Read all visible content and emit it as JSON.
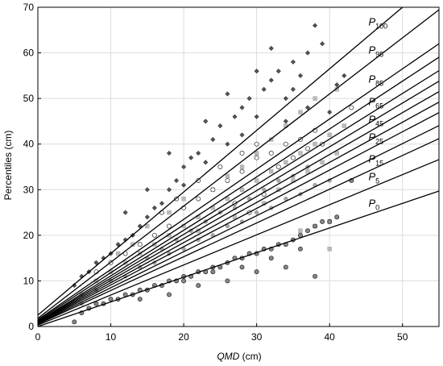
{
  "chart_data": {
    "type": "scatter",
    "title": "",
    "xlabel": "QMD",
    "xlabel_unit": " (cm)",
    "ylabel": "Percentiles (cm)",
    "xlim": [
      0,
      55
    ],
    "ylim": [
      0,
      70
    ],
    "xticks": [
      0,
      10,
      20,
      30,
      40,
      50
    ],
    "yticks": [
      0,
      10,
      20,
      30,
      40,
      50,
      60,
      70
    ],
    "grid": true,
    "legend": "none",
    "colors": {
      "line": "#000000",
      "grid": "#dcdcdc",
      "marker_dark": "#555555",
      "marker_light": "#bbbbbb"
    },
    "lines": [
      {
        "name": "P",
        "sub": "100",
        "intercept": 2.5,
        "slope": 1.35
      },
      {
        "name": "P",
        "sub": "95",
        "intercept": 1.8,
        "slope": 1.23
      },
      {
        "name": "P",
        "sub": "85",
        "intercept": 1.5,
        "slope": 1.1
      },
      {
        "name": "",
        "sub": "",
        "intercept": 1.3,
        "slope": 1.05
      },
      {
        "name": "P",
        "sub": "65",
        "intercept": 1.1,
        "slope": 1.0
      },
      {
        "name": "",
        "sub": "",
        "intercept": 1.0,
        "slope": 0.96
      },
      {
        "name": "P",
        "sub": "45",
        "intercept": 0.9,
        "slope": 0.92
      },
      {
        "name": "",
        "sub": "",
        "intercept": 0.8,
        "slope": 0.88
      },
      {
        "name": "P",
        "sub": "25",
        "intercept": 0.7,
        "slope": 0.84
      },
      {
        "name": "",
        "sub": "",
        "intercept": 0.6,
        "slope": 0.79
      },
      {
        "name": "P",
        "sub": "15",
        "intercept": 0.5,
        "slope": 0.74
      },
      {
        "name": "P",
        "sub": "5",
        "intercept": 0.3,
        "slope": 0.66
      },
      {
        "name": "P",
        "sub": "0",
        "intercept": 0.0,
        "slope": 0.54
      }
    ],
    "series": [
      {
        "marker": "diamond",
        "points": [
          [
            5,
            9
          ],
          [
            6,
            11
          ],
          [
            7,
            12
          ],
          [
            8,
            14
          ],
          [
            9,
            15
          ],
          [
            10,
            16
          ],
          [
            11,
            18
          ],
          [
            12,
            19
          ],
          [
            13,
            20
          ],
          [
            14,
            22
          ],
          [
            15,
            24
          ],
          [
            16,
            26
          ],
          [
            17,
            27
          ],
          [
            18,
            30
          ],
          [
            19,
            32
          ],
          [
            20,
            35
          ],
          [
            21,
            37
          ],
          [
            22,
            38
          ],
          [
            23,
            36
          ],
          [
            24,
            41
          ],
          [
            25,
            44
          ],
          [
            26,
            40
          ],
          [
            27,
            46
          ],
          [
            28,
            48
          ],
          [
            29,
            50
          ],
          [
            30,
            46
          ],
          [
            31,
            52
          ],
          [
            32,
            54
          ],
          [
            33,
            56
          ],
          [
            34,
            50
          ],
          [
            35,
            58
          ],
          [
            36,
            55
          ],
          [
            37,
            60
          ],
          [
            38,
            66
          ],
          [
            39,
            62
          ],
          [
            41,
            53
          ],
          [
            32,
            61
          ],
          [
            26,
            51
          ],
          [
            23,
            45
          ],
          [
            18,
            38
          ],
          [
            15,
            30
          ],
          [
            12,
            25
          ],
          [
            20,
            31
          ],
          [
            28,
            42
          ],
          [
            34,
            45
          ],
          [
            37,
            48
          ],
          [
            40,
            47
          ],
          [
            42,
            55
          ],
          [
            30,
            56
          ],
          [
            35,
            52
          ]
        ]
      },
      {
        "marker": "square",
        "points": [
          [
            6,
            7
          ],
          [
            8,
            10
          ],
          [
            10,
            12
          ],
          [
            12,
            14
          ],
          [
            14,
            16
          ],
          [
            16,
            18
          ],
          [
            18,
            20
          ],
          [
            20,
            22
          ],
          [
            22,
            24
          ],
          [
            24,
            26
          ],
          [
            26,
            28
          ],
          [
            28,
            30
          ],
          [
            30,
            32
          ],
          [
            32,
            34
          ],
          [
            34,
            36
          ],
          [
            36,
            38
          ],
          [
            38,
            40
          ],
          [
            40,
            42
          ],
          [
            42,
            44
          ],
          [
            36,
            47
          ],
          [
            38,
            50
          ],
          [
            41,
            52
          ],
          [
            40,
            23
          ],
          [
            38,
            22
          ],
          [
            36,
            21
          ],
          [
            40,
            17
          ],
          [
            22,
            21
          ],
          [
            24,
            30
          ],
          [
            26,
            33
          ],
          [
            28,
            35
          ],
          [
            30,
            38
          ],
          [
            32,
            41
          ],
          [
            34,
            44
          ],
          [
            15,
            22
          ],
          [
            18,
            25
          ],
          [
            20,
            28
          ],
          [
            27,
            24
          ],
          [
            31,
            27
          ],
          [
            33,
            30
          ],
          [
            35,
            32
          ],
          [
            37,
            34
          ],
          [
            39,
            36
          ],
          [
            41,
            38
          ],
          [
            11,
            16
          ],
          [
            13,
            18
          ]
        ]
      },
      {
        "marker": "circle-open",
        "points": [
          [
            8,
            12
          ],
          [
            10,
            14
          ],
          [
            12,
            16
          ],
          [
            14,
            18
          ],
          [
            16,
            20
          ],
          [
            18,
            22
          ],
          [
            20,
            26
          ],
          [
            22,
            28
          ],
          [
            24,
            30
          ],
          [
            26,
            32
          ],
          [
            28,
            34
          ],
          [
            30,
            37
          ],
          [
            32,
            38
          ],
          [
            34,
            40
          ],
          [
            36,
            41
          ],
          [
            38,
            43
          ],
          [
            43,
            48
          ],
          [
            28,
            38
          ],
          [
            30,
            40
          ],
          [
            25,
            35
          ],
          [
            22,
            32
          ],
          [
            19,
            28
          ],
          [
            17,
            25
          ],
          [
            33,
            35
          ],
          [
            35,
            37
          ],
          [
            37,
            39
          ],
          [
            29,
            25
          ],
          [
            31,
            29
          ],
          [
            27,
            27
          ],
          [
            39,
            40
          ]
        ]
      },
      {
        "marker": "circle-filled",
        "points": [
          [
            5,
            1
          ],
          [
            6,
            3
          ],
          [
            7,
            4
          ],
          [
            8,
            5
          ],
          [
            9,
            5
          ],
          [
            10,
            6
          ],
          [
            11,
            6
          ],
          [
            12,
            7
          ],
          [
            13,
            7
          ],
          [
            14,
            8
          ],
          [
            15,
            8
          ],
          [
            16,
            9
          ],
          [
            17,
            9
          ],
          [
            18,
            10
          ],
          [
            19,
            10
          ],
          [
            20,
            11
          ],
          [
            21,
            11
          ],
          [
            22,
            12
          ],
          [
            23,
            12
          ],
          [
            24,
            13
          ],
          [
            25,
            13
          ],
          [
            26,
            14
          ],
          [
            27,
            15
          ],
          [
            28,
            15
          ],
          [
            29,
            16
          ],
          [
            30,
            16
          ],
          [
            31,
            17
          ],
          [
            32,
            17
          ],
          [
            33,
            18
          ],
          [
            34,
            18
          ],
          [
            35,
            19
          ],
          [
            36,
            20
          ],
          [
            37,
            21
          ],
          [
            38,
            22
          ],
          [
            39,
            23
          ],
          [
            40,
            23
          ],
          [
            41,
            24
          ],
          [
            43,
            32
          ],
          [
            38,
            11
          ],
          [
            34,
            13
          ],
          [
            30,
            12
          ],
          [
            26,
            10
          ],
          [
            22,
            9
          ],
          [
            18,
            7
          ],
          [
            14,
            6
          ],
          [
            36,
            17
          ],
          [
            32,
            15
          ],
          [
            28,
            13
          ],
          [
            24,
            12
          ],
          [
            20,
            10
          ]
        ]
      },
      {
        "marker": "circle-gray",
        "points": [
          [
            6,
            5
          ],
          [
            8,
            8
          ],
          [
            10,
            10
          ],
          [
            12,
            11
          ],
          [
            14,
            13
          ],
          [
            16,
            14
          ],
          [
            18,
            16
          ],
          [
            20,
            17
          ],
          [
            22,
            19
          ],
          [
            24,
            20
          ],
          [
            26,
            22
          ],
          [
            28,
            23
          ],
          [
            30,
            25
          ],
          [
            32,
            26
          ],
          [
            34,
            28
          ],
          [
            36,
            29
          ],
          [
            38,
            31
          ],
          [
            40,
            32
          ],
          [
            19,
            19
          ],
          [
            21,
            21
          ],
          [
            23,
            23
          ],
          [
            25,
            25
          ],
          [
            27,
            26
          ],
          [
            29,
            28
          ],
          [
            31,
            30
          ],
          [
            33,
            32
          ],
          [
            35,
            33
          ],
          [
            37,
            35
          ],
          [
            15,
            15
          ],
          [
            17,
            17
          ]
        ]
      }
    ]
  }
}
